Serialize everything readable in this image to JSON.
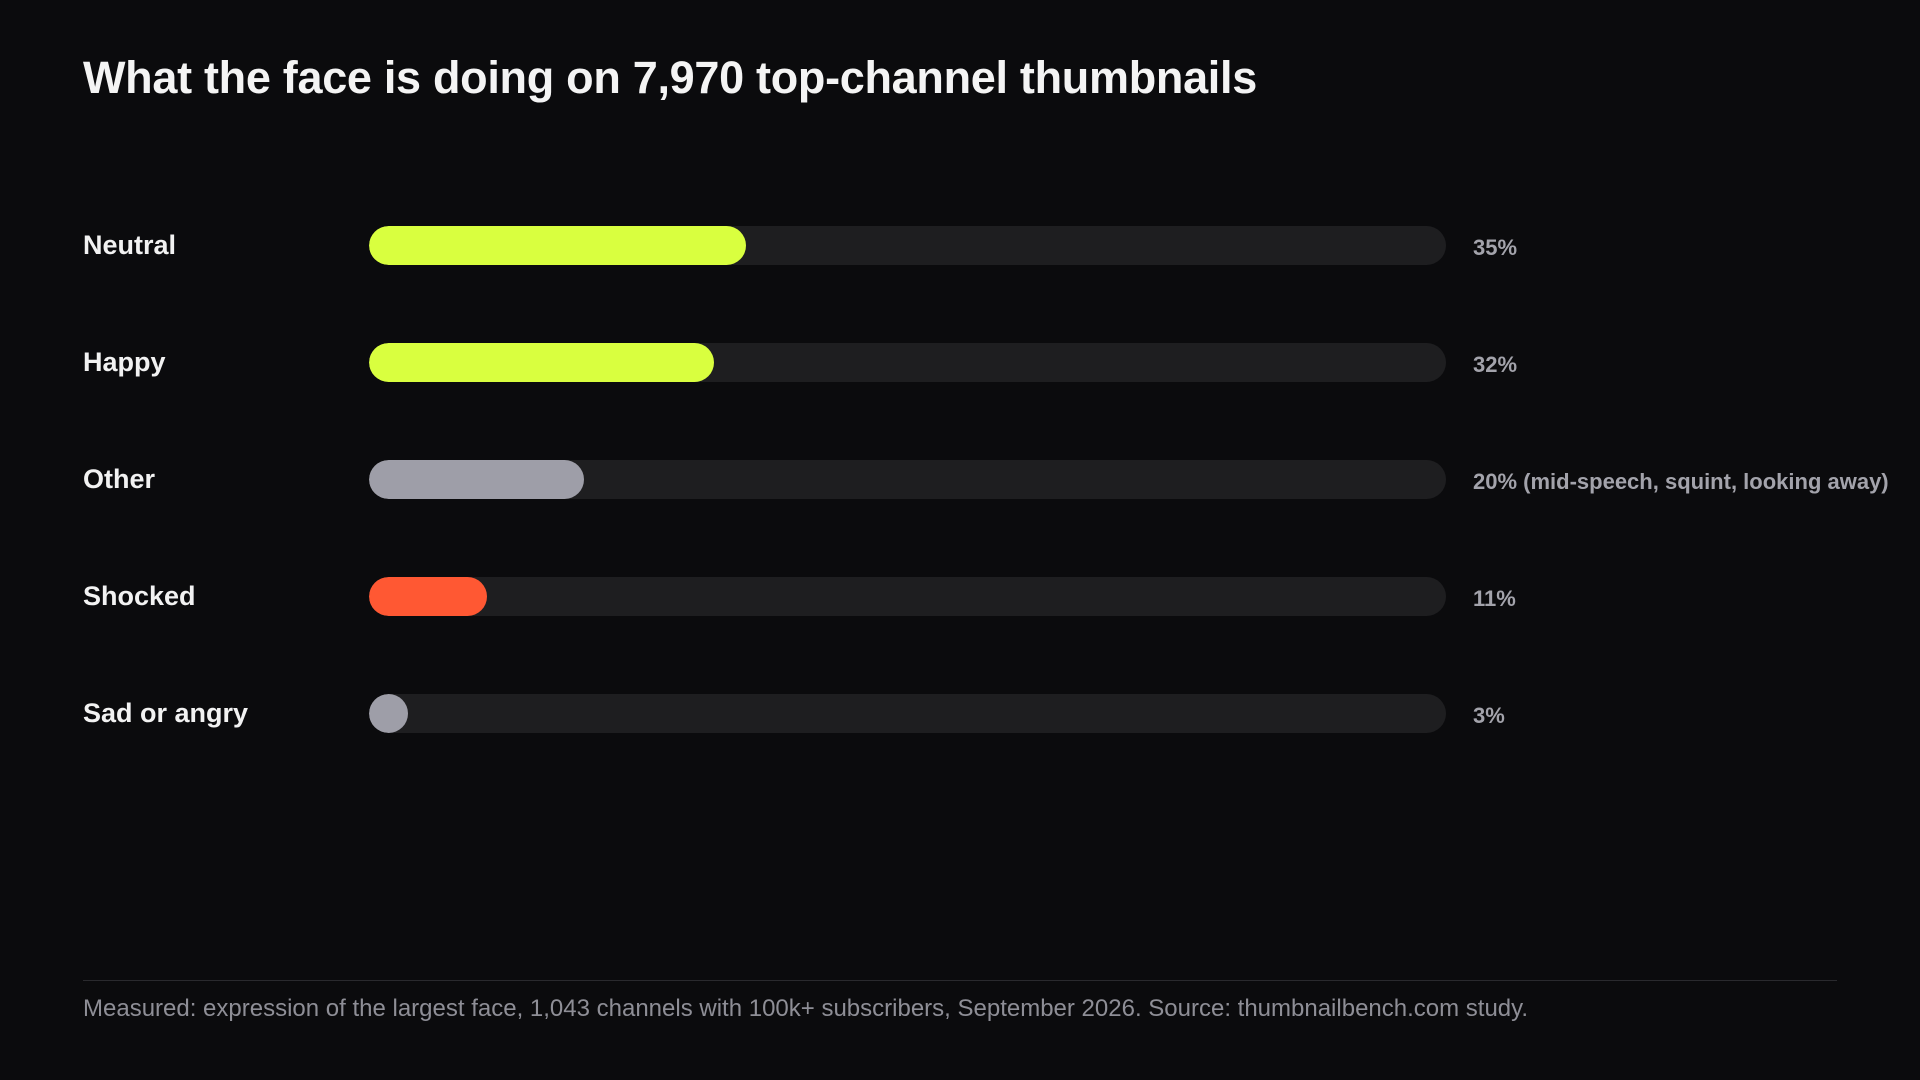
{
  "title": "What the face is doing on 7,970 top-channel thumbnails",
  "chart_data": {
    "type": "bar",
    "orientation": "horizontal",
    "categories": [
      "Neutral",
      "Happy",
      "Other",
      "Shocked",
      "Sad or angry"
    ],
    "values": [
      35,
      32,
      20,
      11,
      3
    ],
    "value_labels": [
      "35%",
      "32%",
      "20% (mid-speech, squint, looking away)",
      "11%",
      "3%"
    ],
    "unit": "%",
    "xlim": [
      0,
      100
    ],
    "bar_colors": [
      "#d9ff3f",
      "#d9ff3f",
      "#9e9ea8",
      "#ff5833",
      "#9e9ea8"
    ],
    "track_color": "#1e1e20",
    "grid": false,
    "legend": "none"
  },
  "footnote": "Measured: expression of the largest face, 1,043 channels with 100k+ subscribers, September 2026. Source: thumbnailbench.com study."
}
